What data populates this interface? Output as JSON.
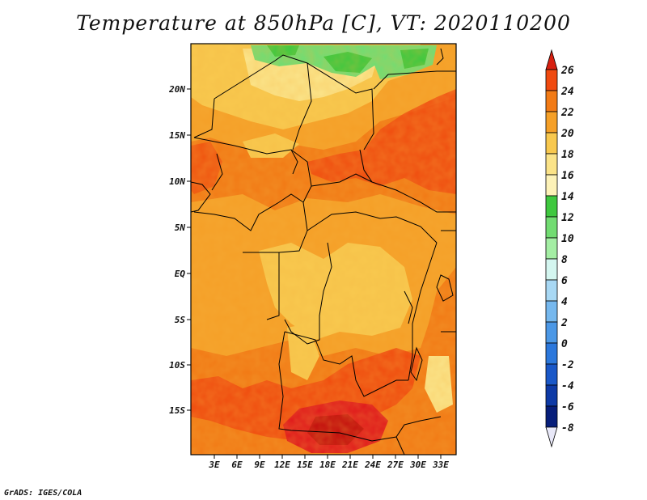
{
  "title": "Temperature at 850hPa [C], VT: 2020110200",
  "credit": "GrADS: IGES/COLA",
  "map": {
    "lat_labels": [
      "20N",
      "15N",
      "10N",
      "5N",
      "EQ",
      "5S",
      "10S",
      "15S"
    ],
    "lon_labels": [
      "3E",
      "6E",
      "9E",
      "12E",
      "15E",
      "18E",
      "21E",
      "24E",
      "27E",
      "30E",
      "33E"
    ]
  },
  "colorbar": {
    "levels": [
      "26",
      "24",
      "22",
      "20",
      "18",
      "16",
      "14",
      "12",
      "10",
      "8",
      "6",
      "4",
      "2",
      "0",
      "-2",
      "-4",
      "-6",
      "-8"
    ],
    "colors": [
      "#e01c1c",
      "#f04a10",
      "#f27b16",
      "#f5a028",
      "#f8c84e",
      "#fbe388",
      "#fdf2b8",
      "#3fc83f",
      "#72dc72",
      "#a4eea4",
      "#d4f6f0",
      "#a8d8f4",
      "#76b8ee",
      "#4c98e6",
      "#2c78dc",
      "#1a58c8",
      "#0e3aa6",
      "#071e7a",
      "#061460"
    ],
    "top_arrow_color": "#d72010",
    "bottom_arrow_color": "#e8e8f8"
  }
}
